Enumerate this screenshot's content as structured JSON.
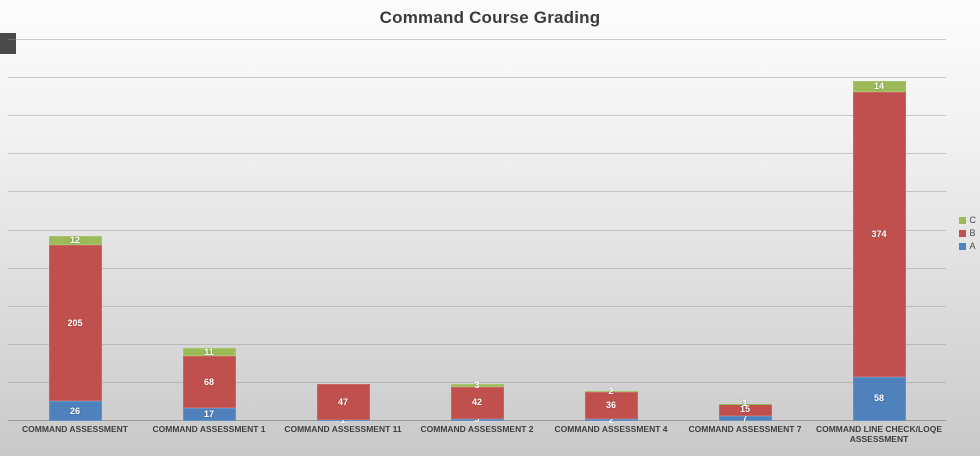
{
  "chart_data": {
    "type": "bar",
    "subtype": "stacked",
    "title": "Command Course Grading",
    "categories": [
      "COMMAND ASSESSMENT",
      "COMMAND ASSESSMENT 1",
      "COMMAND ASSESSMENT 11",
      "COMMAND ASSESSMENT 2",
      "COMMAND ASSESSMENT 4",
      "COMMAND ASSESSMENT 7",
      "COMMAND LINE CHECK/LOQE ASSESSMENT"
    ],
    "series": [
      {
        "name": "A",
        "color": "#4F81BD",
        "values": [
          26,
          17,
          1,
          3,
          2,
          7,
          58
        ]
      },
      {
        "name": "B",
        "color": "#C0504D",
        "values": [
          205,
          68,
          47,
          42,
          36,
          15,
          374
        ]
      },
      {
        "name": "C",
        "color": "#9BBB59",
        "values": [
          12,
          11,
          0,
          3,
          2,
          1,
          14
        ]
      }
    ],
    "legend": [
      {
        "label": "C",
        "color": "#9BBB59"
      },
      {
        "label": "B",
        "color": "#C0504D"
      },
      {
        "label": "A",
        "color": "#4F81BD"
      }
    ],
    "legend_position": "right",
    "xlabel": "",
    "ylabel": "",
    "ylim": [
      0,
      500
    ],
    "grid_interval": 50,
    "grid": true,
    "y_axis_labels_visible": false
  }
}
